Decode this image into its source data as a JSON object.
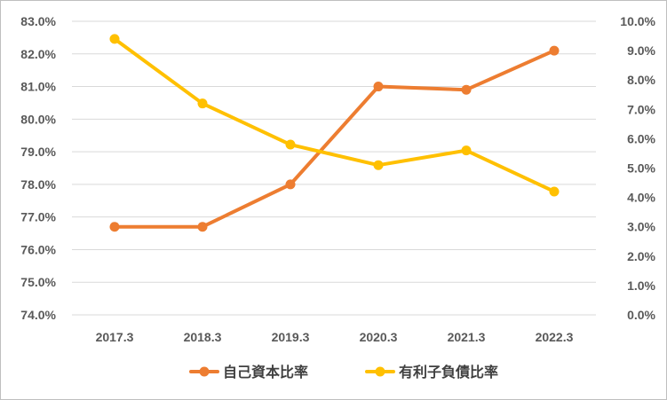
{
  "chart_data": {
    "type": "line",
    "title": "",
    "categories": [
      "2017.3",
      "2018.3",
      "2019.3",
      "2020.3",
      "2021.3",
      "2022.3"
    ],
    "series": [
      {
        "name": "自己資本比率",
        "axis": "left",
        "color": "#ED7D31",
        "values": [
          76.7,
          76.7,
          78.0,
          81.0,
          80.9,
          82.1
        ]
      },
      {
        "name": "有利子負債比率",
        "axis": "right",
        "color": "#FFC000",
        "values": [
          9.4,
          7.2,
          5.8,
          5.1,
          5.6,
          4.2
        ]
      }
    ],
    "left_axis": {
      "min": 74.0,
      "max": 83.0,
      "step": 1.0,
      "tick_labels": [
        "74.0%",
        "75.0%",
        "76.0%",
        "77.0%",
        "78.0%",
        "79.0%",
        "80.0%",
        "81.0%",
        "82.0%",
        "83.0%"
      ]
    },
    "right_axis": {
      "min": 0.0,
      "max": 10.0,
      "step": 1.0,
      "tick_labels": [
        "0.0%",
        "1.0%",
        "2.0%",
        "3.0%",
        "4.0%",
        "5.0%",
        "6.0%",
        "7.0%",
        "8.0%",
        "9.0%",
        "10.0%"
      ]
    },
    "grid": true,
    "legend": "bottom"
  }
}
